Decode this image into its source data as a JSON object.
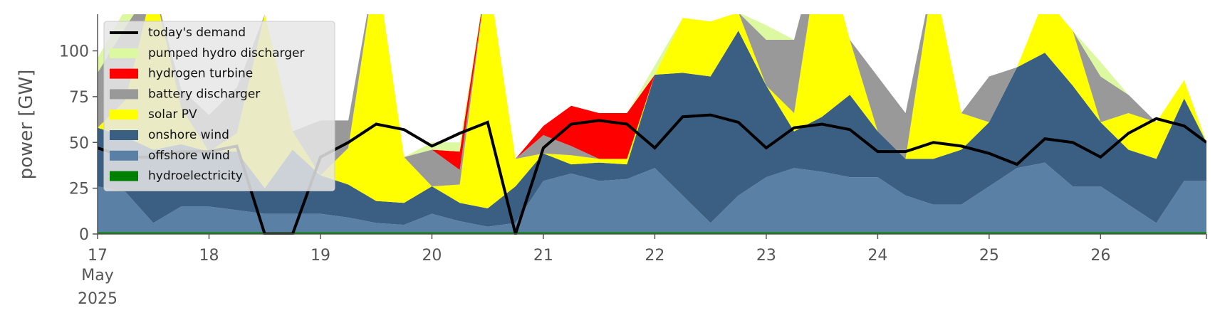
{
  "chart_data": {
    "type": "area",
    "ylabel": "power [GW]",
    "x_tick_month": "May",
    "x_tick_year": "2025",
    "x": [
      17.0,
      17.25,
      17.5,
      17.75,
      18.0,
      18.25,
      18.5,
      18.75,
      19.0,
      19.25,
      19.5,
      19.75,
      20.0,
      20.25,
      20.5,
      20.75,
      21.0,
      21.25,
      21.5,
      21.75,
      22.0,
      22.25,
      22.5,
      22.75,
      23.0,
      23.25,
      23.5,
      23.75,
      24.0,
      24.25,
      24.5,
      24.75,
      25.0,
      25.25,
      25.5,
      25.75,
      26.0,
      26.25,
      26.5,
      26.75,
      26.95
    ],
    "xlim": [
      17,
      26.95
    ],
    "xticks": [
      17,
      18,
      19,
      20,
      21,
      22,
      23,
      24,
      25,
      26
    ],
    "ylim": [
      0,
      120
    ],
    "yticks": [
      0,
      25,
      50,
      75,
      100
    ],
    "grid": false,
    "legend": "upper left",
    "series": [
      {
        "name": "today's demand",
        "type": "line",
        "color": "#000000",
        "values": [
          47,
          42,
          42,
          45,
          45,
          48,
          0,
          0,
          42,
          50,
          60,
          57,
          48,
          55,
          61,
          0,
          47,
          60,
          62,
          60,
          47,
          64,
          65,
          61,
          47,
          58,
          60,
          57,
          45,
          45,
          50,
          48,
          44,
          38,
          52,
          50,
          42,
          55,
          63,
          59,
          50
        ]
      },
      {
        "name": "pumped hydro discharger",
        "type": "area",
        "color": "#dcf8a0",
        "values": [
          8,
          10,
          0,
          0,
          0,
          0,
          0,
          0,
          0,
          0,
          0,
          0,
          4,
          5,
          0,
          0,
          0,
          0,
          0,
          0,
          5,
          0,
          0,
          0,
          8,
          0,
          0,
          0,
          0,
          0,
          0,
          0,
          0,
          0,
          0,
          0,
          8,
          0,
          0,
          0,
          0
        ]
      },
      {
        "name": "hydrogen turbine",
        "type": "area",
        "color": "#ff0000",
        "values": [
          0,
          0,
          0,
          0,
          0,
          0,
          0,
          0,
          0,
          0,
          0,
          0,
          0,
          10,
          0,
          0,
          5,
          22,
          25,
          25,
          0,
          0,
          0,
          0,
          0,
          0,
          0,
          0,
          0,
          0,
          0,
          0,
          0,
          0,
          0,
          0,
          0,
          0,
          0,
          0,
          0
        ]
      },
      {
        "name": "battery discharger",
        "type": "area",
        "color": "#999999",
        "values": [
          30,
          40,
          0,
          10,
          20,
          25,
          0,
          0,
          30,
          15,
          0,
          0,
          20,
          8,
          0,
          0,
          10,
          5,
          0,
          0,
          0,
          0,
          0,
          0,
          25,
          40,
          0,
          0,
          30,
          25,
          0,
          0,
          25,
          0,
          0,
          0,
          25,
          10,
          0,
          0,
          0
        ]
      },
      {
        "name": "solar PV",
        "type": "area",
        "color": "#ffff00",
        "values": [
          0,
          20,
          90,
          20,
          0,
          10,
          95,
          10,
          0,
          20,
          130,
          25,
          0,
          10,
          130,
          15,
          0,
          5,
          2,
          3,
          0,
          30,
          30,
          10,
          0,
          10,
          100,
          30,
          0,
          0,
          100,
          20,
          0,
          0,
          30,
          30,
          0,
          20,
          20,
          10,
          0
        ]
      },
      {
        "name": "onshore wind",
        "type": "area",
        "color": "#3b5f83",
        "values": [
          32,
          30,
          40,
          34,
          30,
          32,
          14,
          35,
          21,
          18,
          12,
          12,
          15,
          10,
          10,
          20,
          15,
          5,
          10,
          8,
          51,
          67,
          80,
          90,
          50,
          20,
          30,
          45,
          25,
          20,
          25,
          30,
          35,
          55,
          60,
          55,
          35,
          30,
          35,
          45,
          21
        ]
      },
      {
        "name": "offshore wind",
        "type": "area",
        "color": "#5b80a5",
        "values": [
          25,
          22,
          5,
          14,
          14,
          12,
          10,
          10,
          10,
          8,
          5,
          4,
          10,
          6,
          3,
          5,
          28,
          32,
          28,
          29,
          35,
          20,
          5,
          20,
          30,
          35,
          33,
          30,
          30,
          20,
          15,
          15,
          25,
          35,
          38,
          25,
          25,
          15,
          5,
          28,
          28
        ]
      },
      {
        "name": "hydroelectricity",
        "type": "area",
        "color": "#008000",
        "values": [
          1,
          1,
          1,
          1,
          1,
          1,
          1,
          1,
          1,
          1,
          1,
          1,
          1,
          1,
          1,
          1,
          1,
          1,
          1,
          1,
          1,
          1,
          1,
          1,
          1,
          1,
          1,
          1,
          1,
          1,
          1,
          1,
          1,
          1,
          1,
          1,
          1,
          1,
          1,
          1,
          1
        ]
      }
    ]
  }
}
